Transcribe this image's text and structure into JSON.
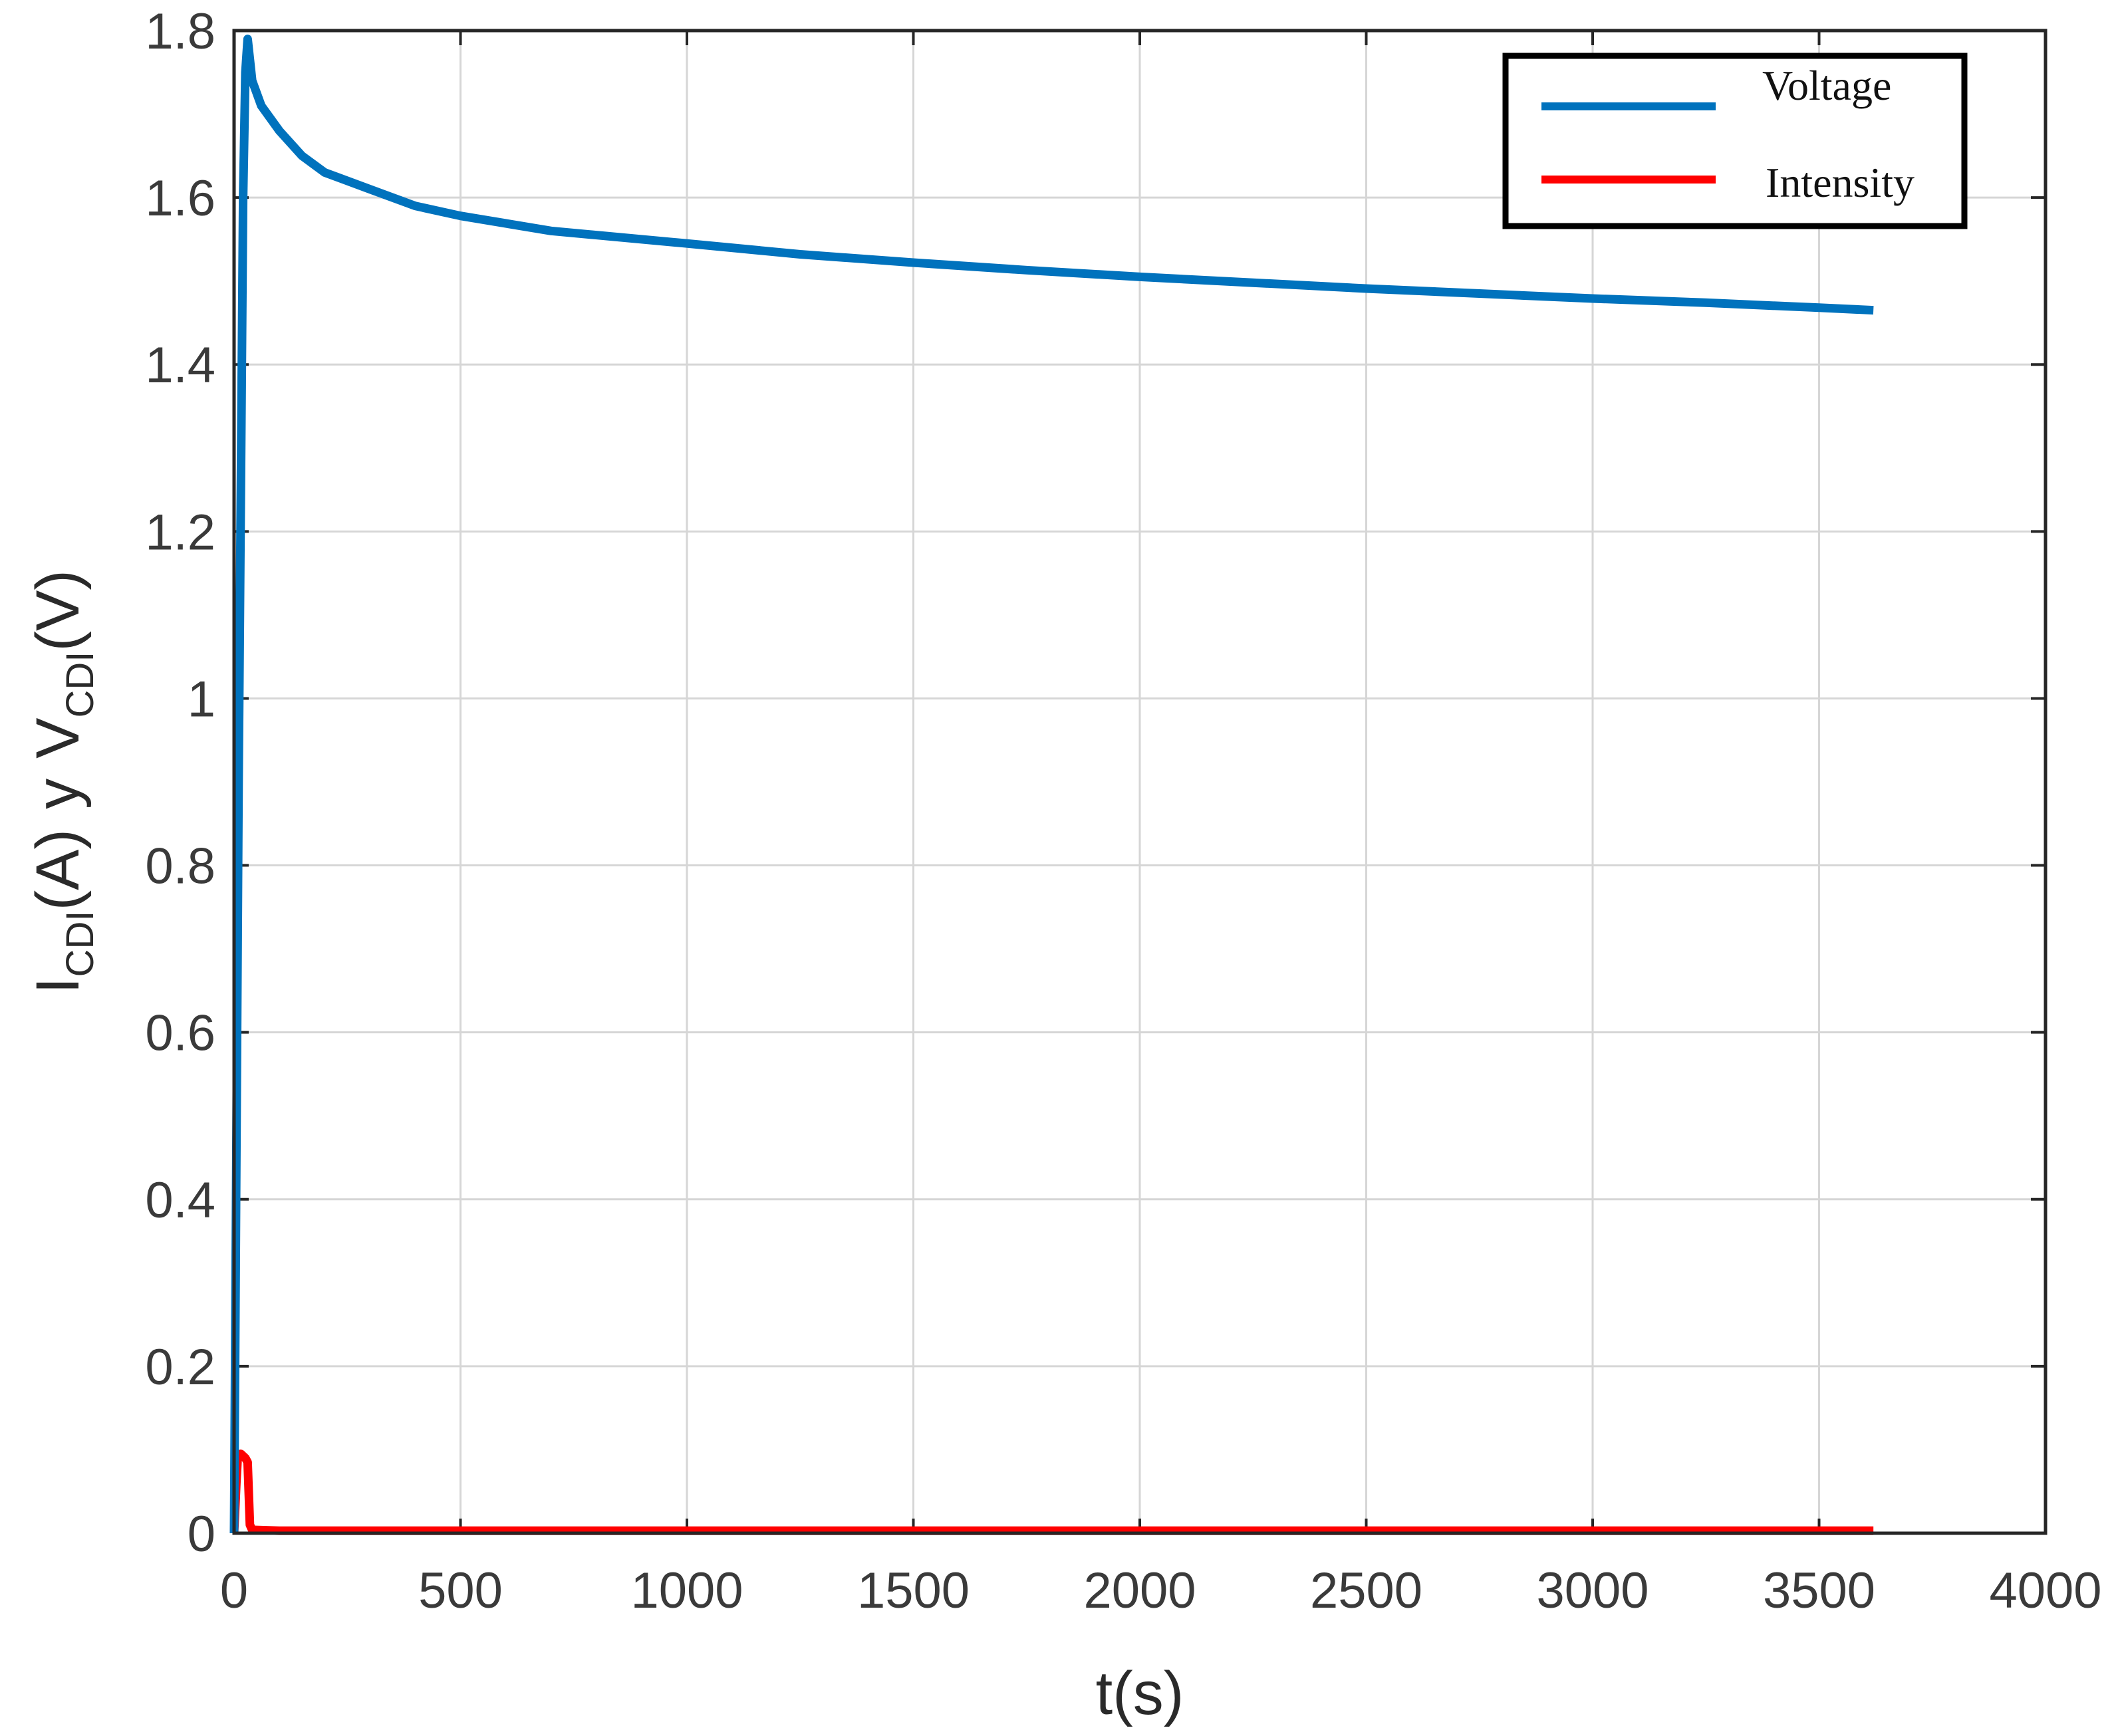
{
  "chart_data": {
    "type": "line",
    "xlabel": "t(s)",
    "ylabel": {
      "i_main": "I",
      "i_sub": "CDI",
      "i_unit": "(A)",
      "conj": "y",
      "v_main": "V",
      "v_sub": "CDI",
      "v_unit": "(V)"
    },
    "xlim": [
      0,
      4000
    ],
    "ylim": [
      0,
      1.8
    ],
    "xticks": [
      0,
      500,
      1000,
      1500,
      2000,
      2500,
      3000,
      3500,
      4000
    ],
    "xtick_labels": [
      "0",
      "500",
      "1000",
      "1500",
      "2000",
      "2500",
      "3000",
      "3500",
      "4000"
    ],
    "yticks": [
      0,
      0.2,
      0.4,
      0.6,
      0.8,
      1,
      1.2,
      1.4,
      1.6,
      1.8
    ],
    "ytick_labels": [
      "0",
      "0.2",
      "0.4",
      "0.6",
      "0.8",
      "1",
      "1.2",
      "1.4",
      "1.6",
      "1.8"
    ],
    "grid": true,
    "legend_position": "top-right",
    "series": [
      {
        "name": "Voltage",
        "color": "#0072BD",
        "x": [
          0,
          10,
          20,
          25,
          30,
          40,
          60,
          100,
          150,
          200,
          300,
          400,
          500,
          700,
          1000,
          1250,
          1500,
          1750,
          2000,
          2250,
          2500,
          2750,
          3000,
          3250,
          3500,
          3620
        ],
        "y": [
          0.0,
          0.9,
          1.6,
          1.75,
          1.79,
          1.74,
          1.71,
          1.68,
          1.65,
          1.63,
          1.61,
          1.59,
          1.578,
          1.56,
          1.545,
          1.532,
          1.522,
          1.513,
          1.505,
          1.498,
          1.491,
          1.485,
          1.479,
          1.474,
          1.468,
          1.465
        ]
      },
      {
        "name": "Intensity",
        "color": "#FF0000",
        "x": [
          0,
          5,
          8,
          15,
          25,
          30,
          35,
          40,
          100,
          500,
          1000,
          1500,
          2000,
          2500,
          3000,
          3500,
          3620
        ],
        "y": [
          0.0,
          0.06,
          0.09,
          0.095,
          0.09,
          0.085,
          0.01,
          0.004,
          0.003,
          0.003,
          0.003,
          0.003,
          0.003,
          0.003,
          0.003,
          0.003,
          0.003
        ]
      }
    ]
  }
}
